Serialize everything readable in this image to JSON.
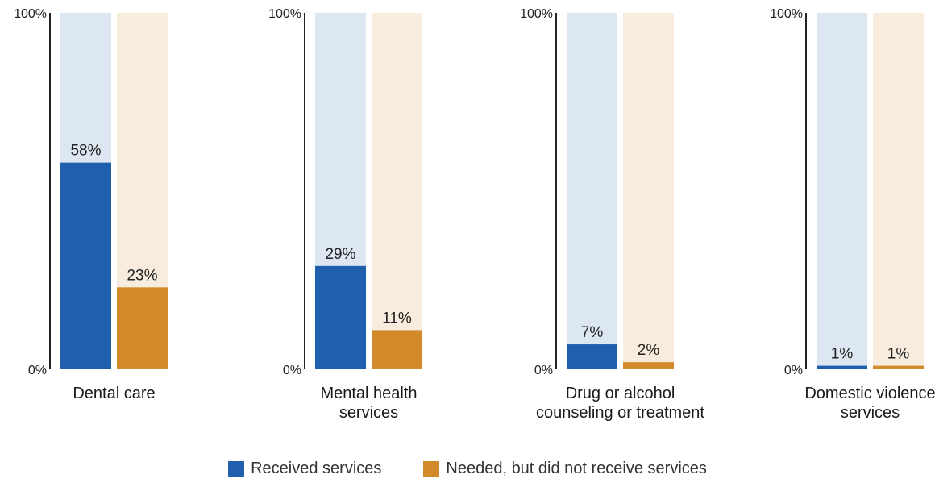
{
  "chart_data": {
    "type": "bar",
    "categories": [
      "Dental care",
      "Mental health\nservices",
      "Drug or alcohol\ncounseling or treatment",
      "Domestic violence\nservices"
    ],
    "series": [
      {
        "name": "Received services",
        "values": [
          58,
          29,
          7,
          1
        ],
        "color": "#1f5fad",
        "bg_color": "#dde7f1"
      },
      {
        "name": "Needed, but did not receive services",
        "values": [
          23,
          11,
          2,
          1
        ],
        "color": "#d38a2a",
        "bg_color": "#f7ecdd"
      }
    ],
    "value_labels": [
      [
        "58%",
        "29%",
        "7%",
        "1%"
      ],
      [
        "23%",
        "11%",
        "2%",
        "1%"
      ]
    ],
    "y_tick_labels": [
      "0%",
      "100%"
    ],
    "ylim": [
      0,
      100
    ],
    "grid": false,
    "legend_position": "bottom"
  }
}
